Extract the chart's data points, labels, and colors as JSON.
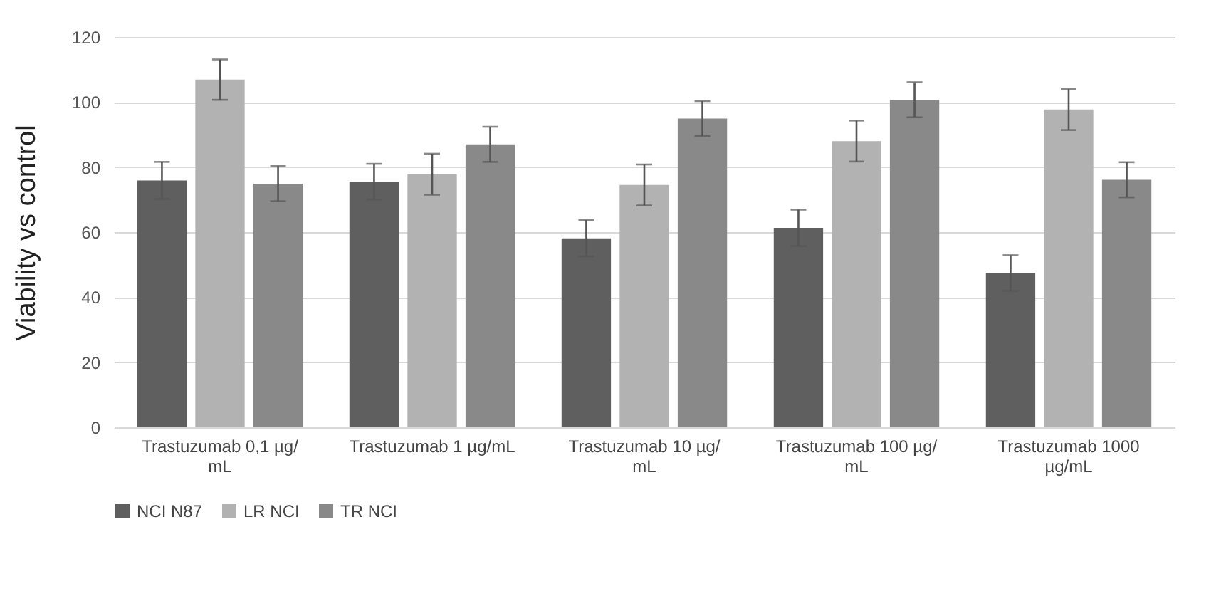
{
  "chart_data": {
    "type": "bar",
    "ylabel": "Viability vs control",
    "categories": [
      "Trastuzumab 0,1 µg/mL",
      "Trastuzumab 1 µg/mL",
      "Trastuzumab 10 µg/mL",
      "Trastuzumab 100 µg/mL",
      "Trastuzumab 1000 µg/mL"
    ],
    "series": [
      {
        "name": "NCI N87",
        "color": "#5f5f5f",
        "values": [
          75.9,
          75.5,
          58.1,
          61.3,
          47.4
        ],
        "errors": [
          5.7,
          5.5,
          5.6,
          5.6,
          5.5
        ]
      },
      {
        "name": "LR NCI",
        "color": "#b2b2b2",
        "values": [
          106.9,
          77.8,
          74.5,
          88.0,
          97.7
        ],
        "errors": [
          6.2,
          6.3,
          6.3,
          6.3,
          6.3
        ]
      },
      {
        "name": "TR NCI",
        "color": "#898989",
        "values": [
          74.9,
          87.0,
          94.9,
          100.7,
          76.1
        ],
        "errors": [
          5.4,
          5.4,
          5.4,
          5.4,
          5.4
        ]
      }
    ],
    "ylim": [
      0,
      120
    ],
    "yticks": [
      0,
      20,
      40,
      60,
      80,
      100,
      120
    ],
    "grid": "y",
    "legend": "bottom"
  }
}
